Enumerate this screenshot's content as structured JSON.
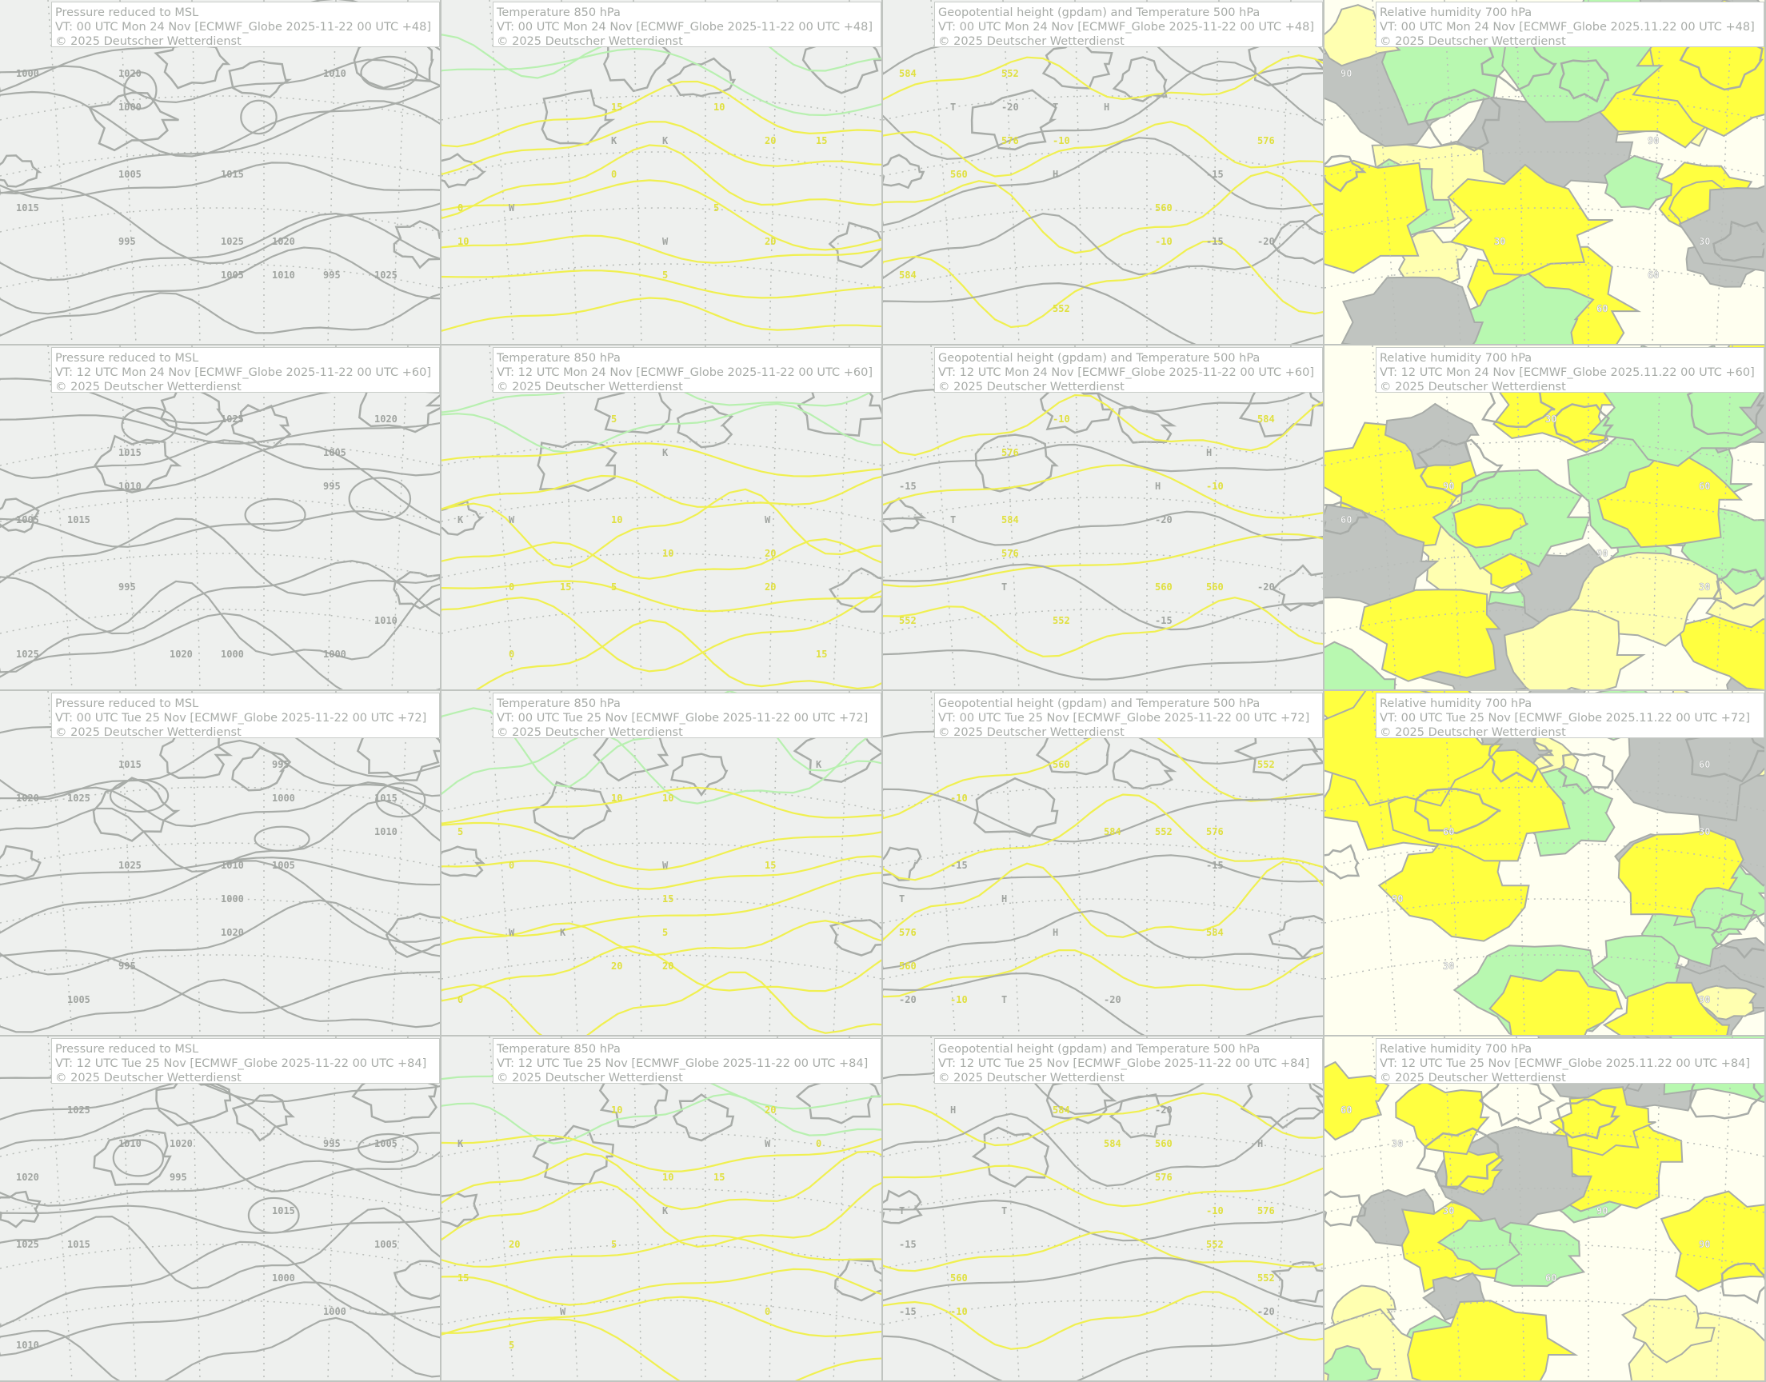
{
  "products": [
    {
      "type": "msl",
      "title": "Pressure reduced to MSL",
      "labels": [
        "1010",
        "1020",
        "1015",
        "1025",
        "1005",
        "995",
        "1000"
      ]
    },
    {
      "type": "t850",
      "title": "Temperature 850 hPa",
      "labels": [
        "0",
        "5",
        "10",
        "15",
        "20",
        "W",
        "K"
      ]
    },
    {
      "type": "z500",
      "title": "Geopotential height (gpdam) and Temperature 500 hPa",
      "labels": [
        "552",
        "576",
        "560",
        "584",
        "-10",
        "-15",
        "-20",
        "H",
        "T"
      ]
    },
    {
      "type": "rh700",
      "title": "Relative humidity 700 hPa",
      "labels": [
        "90",
        "60",
        "30"
      ]
    }
  ],
  "rows": [
    {
      "vt": "VT: 00 UTC Mon  24 Nov [ECMWF_Globe 2025-11-22 00 UTC +48]",
      "vt_rh": "VT: 00 UTC Mon  24 Nov [ECMWF_Globe 2025.11.22 00 UTC +48]"
    },
    {
      "vt": "VT: 12 UTC Mon  24 Nov [ECMWF_Globe 2025-11-22 00 UTC +60]",
      "vt_rh": "VT: 12 UTC Mon  24 Nov [ECMWF_Globe 2025.11.22 00 UTC +60]"
    },
    {
      "vt": "VT: 00 UTC Tue  25 Nov [ECMWF_Globe 2025-11-22 00 UTC +72]",
      "vt_rh": "VT: 00 UTC Tue  25 Nov [ECMWF_Globe 2025.11.22 00 UTC +72]"
    },
    {
      "vt": "VT: 12 UTC Tue  25 Nov [ECMWF_Globe 2025-11-22 00 UTC +84]",
      "vt_rh": "VT: 12 UTC Tue  25 Nov [ECMWF_Globe 2025.11.22 00 UTC +84]"
    }
  ],
  "copyright": "© 2025 Deutscher Wetterdienst",
  "colors": {
    "background": "#eef0ee",
    "land": "#c0c4c0",
    "contour_gray": "#a8aca8",
    "temp_yellow": "#f0f050",
    "temp_green": "#b8f0b0",
    "rh_light": "#fffff0",
    "rh_pale": "#ffffb0",
    "rh_yellow": "#ffff40",
    "rh_green": "#b8f8b0",
    "text": "#a8aca8"
  }
}
